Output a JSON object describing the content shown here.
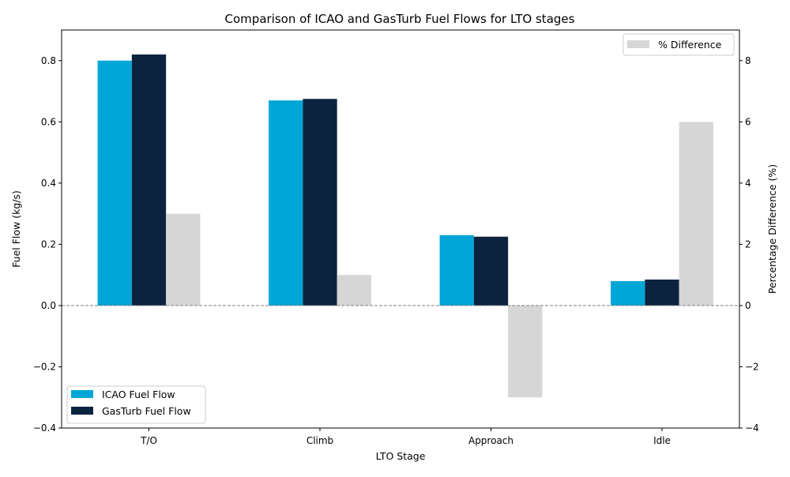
{
  "chart_data": {
    "type": "bar",
    "title": "Comparison of ICAO and GasTurb Fuel Flows for LTO stages",
    "xlabel": "LTO Stage",
    "ylabel": "Fuel Flow (kg/s)",
    "y2label": "Percentage Difference (%)",
    "categories": [
      "T/O",
      "Climb",
      "Approach",
      "Idle"
    ],
    "ylim": [
      -0.4,
      0.9
    ],
    "y2lim": [
      -4,
      9
    ],
    "yticks": [
      -0.4,
      -0.2,
      0.0,
      0.2,
      0.4,
      0.6,
      0.8
    ],
    "ytick_labels": [
      "−0.4",
      "−0.2",
      "0.0",
      "0.2",
      "0.4",
      "0.6",
      "0.8"
    ],
    "y2ticks": [
      -4,
      -2,
      0,
      2,
      4,
      6,
      8
    ],
    "y2tick_labels": [
      "−4",
      "−2",
      "0",
      "2",
      "4",
      "6",
      "8"
    ],
    "series": [
      {
        "name": "ICAO Fuel Flow",
        "axis": "left",
        "color": "#00a6d6",
        "values": [
          0.8,
          0.67,
          0.23,
          0.08
        ]
      },
      {
        "name": "GasTurb Fuel Flow",
        "axis": "left",
        "color": "#0c2340",
        "values": [
          0.82,
          0.675,
          0.225,
          0.085
        ]
      },
      {
        "name": "% Difference",
        "axis": "right",
        "color": "#d6d6d6",
        "values": [
          3.0,
          1.0,
          -3.0,
          6.0
        ]
      }
    ],
    "zero_line": {
      "color": "#808080",
      "style": "dashed"
    },
    "legend_left": {
      "placement": "lower-left",
      "entries": [
        "ICAO Fuel Flow",
        "GasTurb Fuel Flow"
      ]
    },
    "legend_right": {
      "placement": "upper-right",
      "entries": [
        "% Difference"
      ]
    },
    "grid": false
  }
}
